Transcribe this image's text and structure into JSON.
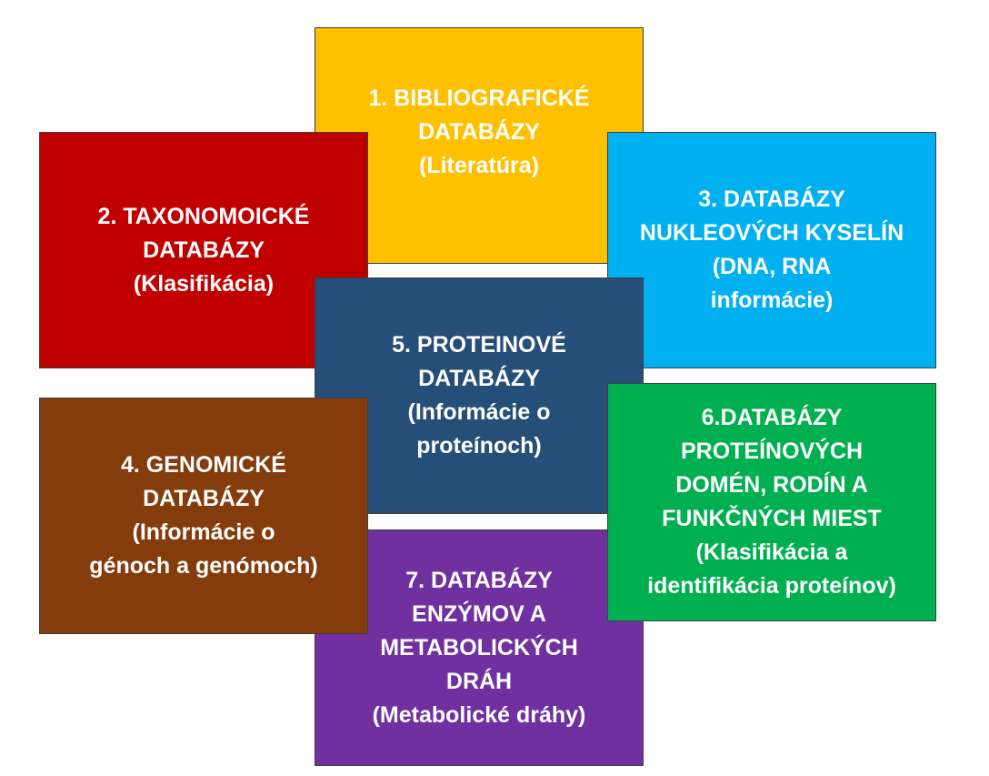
{
  "boxes": [
    {
      "lines": [
        "1.   BIBLIOGRAFICKÉ",
        "DATABÁZY",
        "(Literatúra)"
      ]
    },
    {
      "lines": [
        "2. TAXONOMOICKÉ",
        "DATABÁZY",
        "(Klasifikácia)"
      ]
    },
    {
      "lines": [
        "3. DATABÁZY",
        "NUKLEOVÝCH KYSELÍN",
        "(DNA, RNA",
        "informácie)"
      ]
    },
    {
      "lines": [
        "5. PROTEINOVÉ",
        "DATABÁZY",
        "(Informácie o",
        "proteínoch)"
      ]
    },
    {
      "lines": [
        "7. DATABÁZY",
        "ENZÝMOV A",
        "METABOLICKÝCH",
        "DRÁH",
        "(Metabolické dráhy)"
      ]
    },
    {
      "lines": [
        "6.DATABÁZY",
        "PROTEÍNOVÝCH",
        "DOMÉN, RODÍN A",
        "FUNKČNÝCH MIEST",
        "(Klasifikácia a",
        "identifikácia proteínov)"
      ]
    },
    {
      "lines": [
        "4. GENOMICKÉ",
        "DATABÁZY",
        "(Informácie o",
        "génoch a genómoch)"
      ]
    }
  ]
}
